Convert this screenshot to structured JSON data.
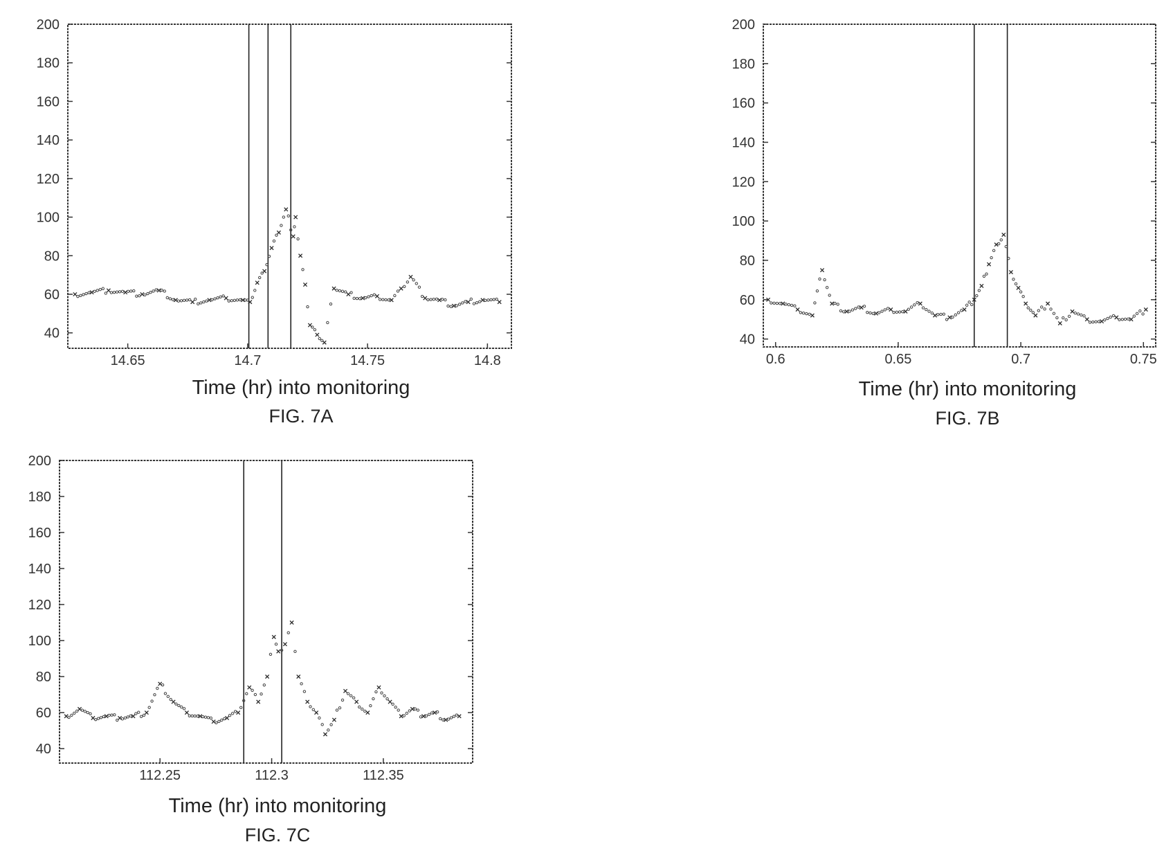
{
  "figures": [
    {
      "id": "7A",
      "caption": "FIG. 7A",
      "x_axis_title": "Time (hr) into monitoring",
      "x_tick_labels": [
        "14.65",
        "14.7",
        "14.75",
        "14.8"
      ]
    },
    {
      "id": "7B",
      "caption": "FIG. 7B",
      "x_axis_title": "Time (hr) into monitoring",
      "x_tick_labels": [
        "0.6",
        "0.65",
        "0.7",
        "0.75"
      ]
    },
    {
      "id": "7C",
      "caption": "FIG. 7C",
      "x_axis_title": "Time (hr) into monitoring",
      "x_tick_labels": [
        "112.25",
        "112.3",
        "112.35"
      ]
    }
  ],
  "chart_data": [
    {
      "type": "scatter",
      "title": "",
      "caption": "FIG. 7A",
      "xlabel": "Time (hr) into monitoring",
      "ylabel": "",
      "xlim": [
        14.625,
        14.81
      ],
      "ylim": [
        32,
        200
      ],
      "x_ticks": [
        14.65,
        14.7,
        14.75,
        14.8
      ],
      "y_ticks": [
        40,
        60,
        80,
        100,
        120,
        140,
        160,
        180,
        200
      ],
      "event_markers_x": [
        14.7005,
        14.7085,
        14.718
      ],
      "series": [
        {
          "x": [
            14.628,
            14.635,
            14.642,
            14.649,
            14.656,
            14.663,
            14.67,
            14.677,
            14.684,
            14.691,
            14.698,
            14.701,
            14.704,
            14.707,
            14.71,
            14.713,
            14.716,
            14.719,
            14.72,
            14.722,
            14.724,
            14.726,
            14.729,
            14.732,
            14.736,
            14.742,
            14.748,
            14.754,
            14.76,
            14.764,
            14.768,
            14.774,
            14.78,
            14.786,
            14.792,
            14.798,
            14.805
          ],
          "y": [
            60,
            61,
            62,
            61,
            60,
            62,
            57,
            56,
            57,
            58,
            57,
            56,
            66,
            72,
            84,
            92,
            104,
            90,
            100,
            80,
            65,
            44,
            39,
            35,
            63,
            60,
            58,
            59,
            57,
            63,
            69,
            58,
            57,
            54,
            56,
            57,
            56
          ]
        }
      ]
    },
    {
      "type": "scatter",
      "title": "",
      "caption": "FIG. 7B",
      "xlabel": "Time (hr) into monitoring",
      "ylabel": "",
      "xlim": [
        0.595,
        0.755
      ],
      "ylim": [
        36,
        200
      ],
      "x_ticks": [
        0.6,
        0.65,
        0.7,
        0.75
      ],
      "y_ticks": [
        40,
        60,
        80,
        100,
        120,
        140,
        160,
        180,
        200
      ],
      "event_markers_x": [
        0.681,
        0.6945
      ],
      "series": [
        {
          "x": [
            0.597,
            0.603,
            0.609,
            0.615,
            0.619,
            0.623,
            0.629,
            0.635,
            0.641,
            0.647,
            0.653,
            0.659,
            0.665,
            0.671,
            0.677,
            0.681,
            0.684,
            0.687,
            0.69,
            0.693,
            0.696,
            0.699,
            0.702,
            0.706,
            0.711,
            0.716,
            0.721,
            0.727,
            0.733,
            0.739,
            0.745,
            0.751
          ],
          "y": [
            60,
            58,
            55,
            52,
            75,
            58,
            54,
            56,
            53,
            55,
            54,
            58,
            52,
            51,
            55,
            60,
            67,
            78,
            88,
            93,
            74,
            66,
            58,
            52,
            58,
            48,
            54,
            50,
            49,
            51,
            50,
            55
          ]
        }
      ]
    },
    {
      "type": "scatter",
      "title": "",
      "caption": "FIG. 7C",
      "xlabel": "Time (hr) into monitoring",
      "ylabel": "",
      "xlim": [
        112.205,
        112.39
      ],
      "ylim": [
        32,
        200
      ],
      "x_ticks": [
        112.25,
        112.3,
        112.35
      ],
      "y_ticks": [
        40,
        60,
        80,
        100,
        120,
        140,
        160,
        180,
        200
      ],
      "event_markers_x": [
        112.2875,
        112.3045
      ],
      "series": [
        {
          "x": [
            112.208,
            112.214,
            112.22,
            112.226,
            112.232,
            112.238,
            112.244,
            112.25,
            112.256,
            112.262,
            112.268,
            112.274,
            112.28,
            112.285,
            112.29,
            112.294,
            112.298,
            112.301,
            112.303,
            112.306,
            112.309,
            112.312,
            112.316,
            112.32,
            112.324,
            112.328,
            112.333,
            112.338,
            112.343,
            112.348,
            112.353,
            112.358,
            112.363,
            112.368,
            112.373,
            112.378,
            112.384
          ],
          "y": [
            58,
            62,
            57,
            58,
            57,
            58,
            60,
            76,
            66,
            60,
            58,
            55,
            57,
            60,
            74,
            66,
            80,
            102,
            94,
            98,
            110,
            80,
            66,
            60,
            48,
            56,
            72,
            66,
            60,
            74,
            66,
            58,
            62,
            58,
            60,
            56,
            58
          ]
        }
      ]
    }
  ]
}
